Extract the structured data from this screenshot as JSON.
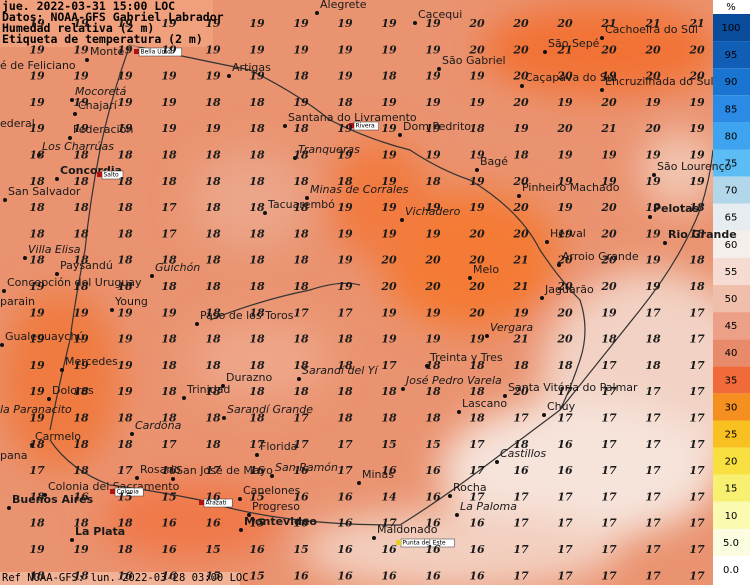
{
  "header": [
    "jue. 2022-03-31 15:00 LOC",
    "Datos: NOAA-GFS Gabriel Labrador",
    "Humedad relativa (2 m)",
    "Etiqueta de temperatura (2 m)"
  ],
  "footer": "Ref NOAA-GFS: lun. 2022-03-28 03:00 LOC",
  "legend": {
    "unit": "%",
    "levels": [
      {
        "value": 100,
        "color": "#0a4c9c"
      },
      {
        "value": 95,
        "color": "#105eb6"
      },
      {
        "value": 90,
        "color": "#1a74d2"
      },
      {
        "value": 85,
        "color": "#2a8ae6"
      },
      {
        "value": 80,
        "color": "#3fa4f0"
      },
      {
        "value": 75,
        "color": "#5cbcf4"
      },
      {
        "value": 70,
        "color": "#b2d6ea"
      },
      {
        "value": 65,
        "color": "#e6ecf0"
      },
      {
        "value": 60,
        "color": "#f5efec"
      },
      {
        "value": 55,
        "color": "#f5dbd1"
      },
      {
        "value": 50,
        "color": "#f0bfab"
      },
      {
        "value": 45,
        "color": "#eba087"
      },
      {
        "value": 40,
        "color": "#e88b6b"
      },
      {
        "value": 35,
        "color": "#f06a3a"
      },
      {
        "value": 30,
        "color": "#f59020"
      },
      {
        "value": 25,
        "color": "#f8c020"
      },
      {
        "value": 20,
        "color": "#f8e040"
      },
      {
        "value": 15,
        "color": "#f8f070"
      },
      {
        "value": 10,
        "color": "#fafab0"
      },
      {
        "value": 5,
        "label": "5.0",
        "color": "#fcfce0"
      },
      {
        "value": 0,
        "label": "0.0",
        "color": "#ffffff"
      }
    ]
  },
  "places": [
    "Alegrete",
    "Cacequi",
    "Cachoeira do Sul",
    "São Sepé",
    "Monte",
    "é de Feliciano",
    "Artigas",
    "São Gabriel",
    "Caçapava do Sul",
    "Encruzilhada do Sul",
    "Mocoretá",
    "Chajarí",
    "Santana do Livramento",
    "Dom Pedrito",
    "ederal",
    "Federación",
    "Los Charrúas",
    "Tranqueras",
    "Bagé",
    "Concordia",
    "São Lourenço",
    "Pinheiro Machado",
    "Minas de Corrales",
    "San Salvador",
    "Tacuarembó",
    "Vichadero",
    "Pelotas",
    "Herval",
    "Rio Grande",
    "Villa Elisa",
    "Arroio Grande",
    "Paysandú",
    "Melo",
    "Guichón",
    "Concepción del Uruguay",
    "Jaguarão",
    "Young",
    "parain",
    "Paso de los Toros",
    "Vergara",
    "Gualeguaychú",
    "Mercedes",
    "Treinta y Tres",
    "Sarandí del Yí",
    "Durazno",
    "José Pedro Varela",
    "Santa Vitória do Palmar",
    "Trinidad",
    "Dolores",
    "Lascano",
    "Chuy",
    "la Paranacito",
    "Sarandí Grande",
    "Cardona",
    "Carmelo",
    "Florida",
    "Castillos",
    "pana",
    "Rosario",
    "San José de Mayo",
    "San Ramón",
    "Minas",
    "Colonia del Sacramento",
    "Canelones",
    "Rocha",
    "Buenos Aires",
    "Progreso",
    "La Paloma",
    "Montevideo",
    "Maldonado",
    "La Plata"
  ],
  "boxed_labels": [
    "Bella Unión",
    "Rivera",
    "Salto",
    "Colonia",
    "Arazati",
    "Punta del Este"
  ],
  "temperature_grid": [
    [
      19,
      19,
      19,
      19,
      19,
      19,
      19,
      19,
      19,
      19,
      20,
      20,
      20,
      21,
      21,
      21
    ],
    [
      19,
      19,
      19,
      19,
      19,
      19,
      19,
      19,
      19,
      19,
      20,
      20,
      21,
      20,
      20,
      20
    ],
    [
      19,
      19,
      19,
      19,
      19,
      19,
      18,
      19,
      18,
      19,
      19,
      20,
      20,
      19,
      20,
      20
    ],
    [
      19,
      19,
      19,
      19,
      18,
      18,
      19,
      18,
      19,
      19,
      19,
      20,
      19,
      20,
      19,
      19
    ],
    [
      19,
      19,
      19,
      19,
      19,
      18,
      18,
      19,
      19,
      19,
      18,
      19,
      20,
      21,
      20,
      19
    ],
    [
      18,
      18,
      18,
      18,
      18,
      18,
      18,
      19,
      19,
      19,
      19,
      18,
      19,
      19,
      19,
      19
    ],
    [
      18,
      18,
      18,
      18,
      18,
      18,
      18,
      18,
      19,
      18,
      19,
      20,
      19,
      19,
      19,
      19
    ],
    [
      18,
      18,
      18,
      17,
      18,
      18,
      18,
      19,
      19,
      19,
      19,
      20,
      19,
      20,
      19,
      18
    ],
    [
      18,
      18,
      18,
      17,
      18,
      18,
      18,
      19,
      19,
      19,
      20,
      20,
      19,
      20,
      19,
      18
    ],
    [
      18,
      18,
      18,
      18,
      18,
      18,
      18,
      19,
      20,
      20,
      20,
      21,
      20,
      20,
      19,
      18
    ],
    [
      19,
      18,
      18,
      18,
      18,
      18,
      18,
      19,
      20,
      20,
      20,
      21,
      20,
      20,
      19,
      18
    ],
    [
      19,
      19,
      19,
      19,
      18,
      18,
      17,
      17,
      19,
      19,
      20,
      19,
      20,
      19,
      17,
      17
    ],
    [
      19,
      19,
      19,
      18,
      18,
      18,
      18,
      18,
      19,
      19,
      19,
      21,
      20,
      18,
      18,
      17
    ],
    [
      19,
      19,
      19,
      18,
      18,
      18,
      18,
      18,
      17,
      18,
      18,
      18,
      18,
      17,
      18,
      17
    ],
    [
      19,
      18,
      19,
      18,
      18,
      18,
      18,
      18,
      18,
      18,
      18,
      20,
      17,
      17,
      17,
      17
    ],
    [
      19,
      18,
      18,
      18,
      18,
      18,
      17,
      18,
      18,
      18,
      18,
      17,
      17,
      17,
      17,
      17
    ],
    [
      18,
      18,
      18,
      17,
      18,
      17,
      17,
      17,
      15,
      15,
      17,
      18,
      16,
      17,
      17,
      17
    ],
    [
      17,
      18,
      17,
      16,
      17,
      16,
      16,
      17,
      16,
      16,
      17,
      16,
      16,
      17,
      17,
      17
    ],
    [
      18,
      16,
      15,
      15,
      16,
      15,
      16,
      16,
      14,
      16,
      17,
      17,
      17,
      17,
      17,
      17
    ],
    [
      18,
      18,
      18,
      16,
      16,
      15,
      16,
      16,
      17,
      16,
      16,
      17,
      17,
      17,
      17,
      17
    ],
    [
      19,
      19,
      18,
      16,
      15,
      16,
      15,
      16,
      16,
      16,
      16,
      17,
      17,
      17,
      17,
      17
    ],
    [
      18,
      18,
      16,
      16,
      15,
      15,
      16,
      16,
      16,
      16,
      16,
      17,
      17,
      17,
      17,
      17
    ]
  ]
}
